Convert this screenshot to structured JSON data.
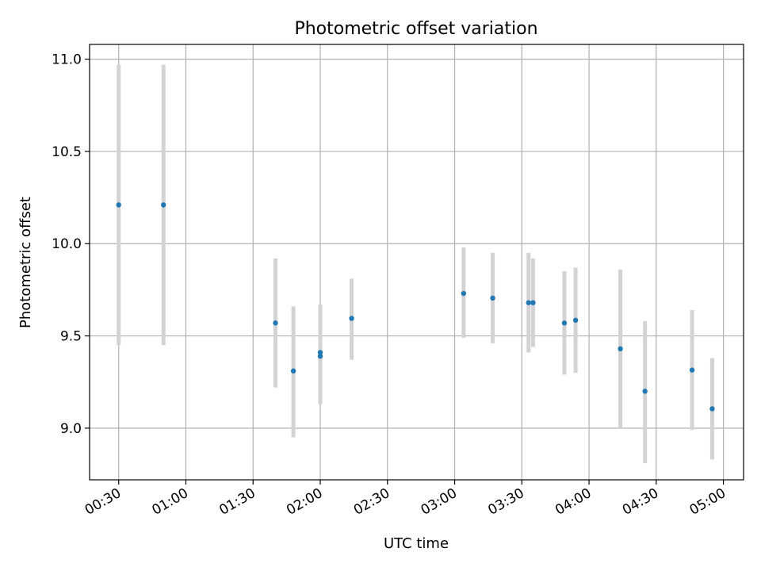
{
  "chart_data": {
    "type": "scatter",
    "title": "Photometric offset variation",
    "xlabel": "UTC time",
    "ylabel": "Photometric offset",
    "xlim": [
      "00:17",
      "05:09"
    ],
    "ylim": [
      8.72,
      11.08
    ],
    "grid": true,
    "x_ticks": [
      "00:30",
      "01:00",
      "01:30",
      "02:00",
      "02:30",
      "03:00",
      "03:30",
      "04:00",
      "04:30",
      "05:00"
    ],
    "y_ticks": [
      9.0,
      9.5,
      10.0,
      10.5,
      11.0
    ],
    "y_tick_labels": [
      "9.0",
      "9.5",
      "10.0",
      "10.5",
      "11.0"
    ],
    "colors": {
      "point": "#1f77b4",
      "errorbar": "#d3d3d3",
      "grid": "#b0b0b0"
    },
    "points": [
      {
        "x": "00:30",
        "y": 10.21,
        "ylow": 9.45,
        "yhigh": 10.97
      },
      {
        "x": "00:50",
        "y": 10.21,
        "ylow": 9.45,
        "yhigh": 10.97
      },
      {
        "x": "01:40",
        "y": 9.57,
        "ylow": 9.22,
        "yhigh": 9.92
      },
      {
        "x": "01:48",
        "y": 9.31,
        "ylow": 8.95,
        "yhigh": 9.66
      },
      {
        "x": "02:00",
        "y": 9.39,
        "ylow": 9.13,
        "yhigh": 9.66
      },
      {
        "x": "02:00",
        "y": 9.41,
        "ylow": 9.16,
        "yhigh": 9.67
      },
      {
        "x": "02:14",
        "y": 9.595,
        "ylow": 9.37,
        "yhigh": 9.81
      },
      {
        "x": "03:04",
        "y": 9.73,
        "ylow": 9.49,
        "yhigh": 9.98
      },
      {
        "x": "03:17",
        "y": 9.705,
        "ylow": 9.46,
        "yhigh": 9.95
      },
      {
        "x": "03:33",
        "y": 9.68,
        "ylow": 9.41,
        "yhigh": 9.95
      },
      {
        "x": "03:35",
        "y": 9.68,
        "ylow": 9.44,
        "yhigh": 9.92
      },
      {
        "x": "03:49",
        "y": 9.57,
        "ylow": 9.29,
        "yhigh": 9.85
      },
      {
        "x": "03:54",
        "y": 9.585,
        "ylow": 9.3,
        "yhigh": 9.87
      },
      {
        "x": "04:14",
        "y": 9.43,
        "ylow": 9.0,
        "yhigh": 9.86
      },
      {
        "x": "04:25",
        "y": 9.2,
        "ylow": 8.81,
        "yhigh": 9.58
      },
      {
        "x": "04:46",
        "y": 9.315,
        "ylow": 8.99,
        "yhigh": 9.64
      },
      {
        "x": "04:55",
        "y": 9.105,
        "ylow": 8.83,
        "yhigh": 9.38
      }
    ]
  }
}
